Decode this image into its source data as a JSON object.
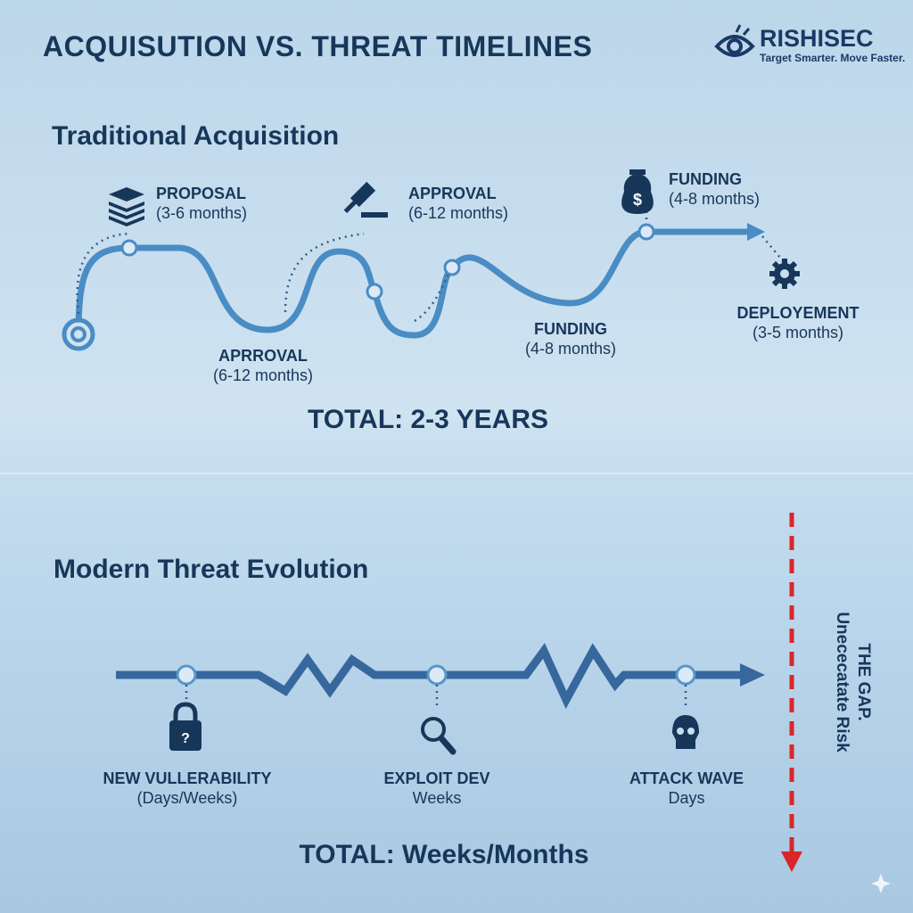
{
  "title": "ACQUISUTION VS. THREAT TIMELINES",
  "logo": {
    "name": "RISHISEC",
    "tagline": "Target Smarter. Move Faster.",
    "icon": "eye-icon"
  },
  "traditional": {
    "heading": "Traditional Acquisition",
    "stages": [
      {
        "label": "PROPOSAL",
        "duration": "(3-6 months)",
        "icon": "stack-icon"
      },
      {
        "label": "APRROVAL",
        "duration": "(6-12 months)"
      },
      {
        "label": "APPROVAL",
        "duration": "(6-12 months)",
        "icon": "gavel-icon"
      },
      {
        "label": "FUNDING",
        "duration": "(4-8 months)"
      },
      {
        "label": "FUNDING",
        "duration": "(4-8 months)",
        "icon": "money-bag-icon"
      },
      {
        "label": "DEPLOYEMENT",
        "duration": "(3-5 months)",
        "icon": "gear-icon"
      }
    ],
    "total": "TOTAL: 2-3 YEARS"
  },
  "modern": {
    "heading": "Modern Threat Evolution",
    "stages": [
      {
        "label": "NEW VULLERABILITY",
        "duration": "(Days/Weeks)",
        "icon": "lock-icon"
      },
      {
        "label": "EXPLOIT DEV",
        "duration": "Weeks",
        "icon": "magnifier-icon"
      },
      {
        "label": "ATTACK WAVE",
        "duration": "Days",
        "icon": "skull-icon"
      }
    ],
    "total": "TOTAL: Weeks/Months"
  },
  "gap": {
    "line1": "THE GAP.",
    "line2": "Unececatate Risk"
  },
  "colors": {
    "text": "#17375a",
    "path": "#4a8cc4",
    "threat": "#36689e",
    "gap_arrow": "#d9262b"
  }
}
